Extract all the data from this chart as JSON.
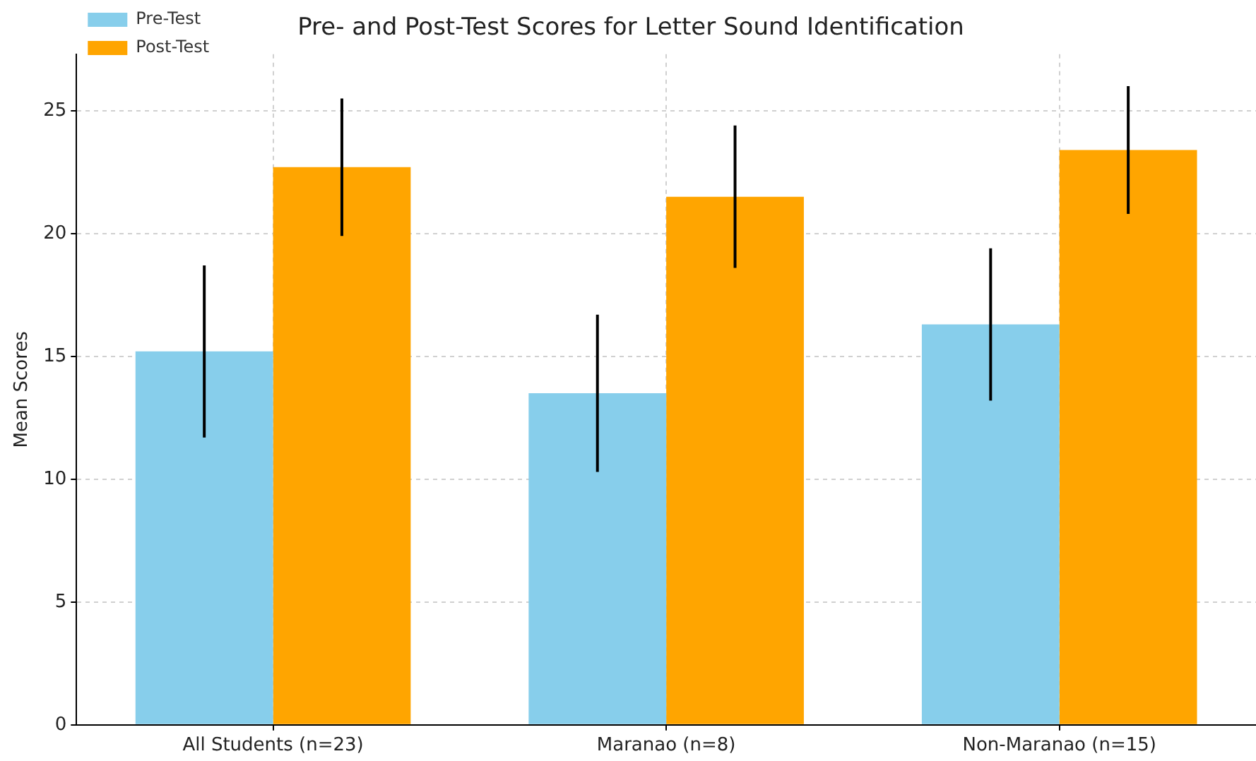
{
  "chart_data": {
    "type": "bar",
    "title": "Pre- and Post-Test Scores for Letter Sound Identification",
    "ylabel": "Mean Scores",
    "categories": [
      "All Students (n=23)",
      "Maranao (n=8)",
      "Non-Maranao (n=15)"
    ],
    "series": [
      {
        "name": "Pre-Test",
        "color": "#87ceeb",
        "values": [
          15.2,
          13.5,
          16.3
        ],
        "errors": [
          3.5,
          3.2,
          3.1
        ]
      },
      {
        "name": "Post-Test",
        "color": "#ffa500",
        "values": [
          22.7,
          21.5,
          23.4
        ],
        "errors": [
          2.8,
          2.9,
          2.6
        ]
      }
    ],
    "ylim": [
      0,
      27.3
    ],
    "yticks": [
      0,
      5,
      10,
      15,
      20,
      25
    ],
    "grid": true,
    "legend": "top left"
  }
}
